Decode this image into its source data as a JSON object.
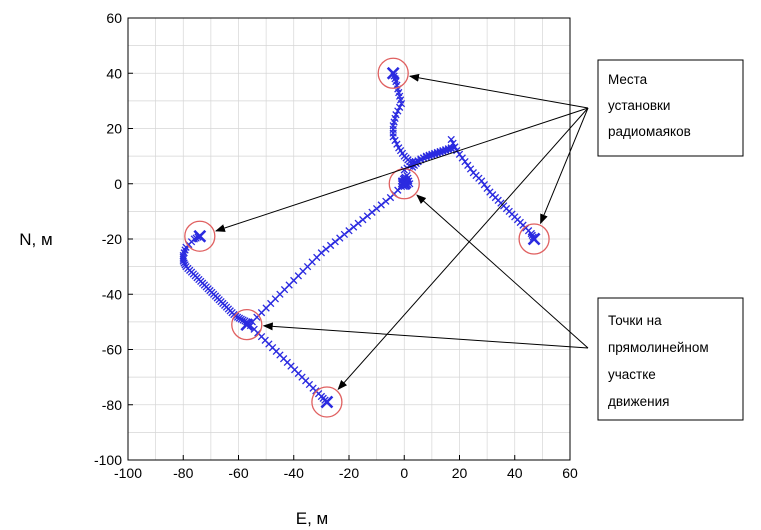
{
  "chart_data": {
    "type": "scatter",
    "xlabel": "E, м",
    "ylabel": "N, м",
    "xlim": [
      -100,
      60
    ],
    "ylim": [
      -100,
      60
    ],
    "x_ticks": [
      -100,
      -80,
      -60,
      -40,
      -20,
      0,
      20,
      40,
      60
    ],
    "y_ticks": [
      -100,
      -80,
      -60,
      -40,
      -20,
      0,
      20,
      40,
      60
    ],
    "x_tick_labels": [
      "-100",
      "-80",
      "-60",
      "-40",
      "-20",
      "0",
      "20",
      "40",
      "60"
    ],
    "y_tick_labels": [
      "-100",
      "-80",
      "-60",
      "-40",
      "-20",
      "0",
      "20",
      "40",
      "60"
    ],
    "grid": true,
    "marker": "x",
    "series_color": "#2a2ae0",
    "circle_color": "#e06060",
    "series": [
      {
        "x": [
          -4,
          -3,
          -2,
          -1,
          -3,
          -4,
          -4,
          -2,
          0,
          2,
          5
        ],
        "y": [
          40,
          37,
          33,
          29,
          25,
          21,
          17,
          13,
          10,
          8,
          8
        ]
      },
      {
        "x": [
          17,
          19,
          22,
          25,
          28,
          31,
          34,
          37,
          40,
          43,
          46,
          47
        ],
        "y": [
          16,
          12,
          8,
          4,
          1,
          -3,
          -6,
          -9,
          -12,
          -15,
          -18,
          -20
        ]
      },
      {
        "x": [
          17,
          14,
          11,
          8,
          5,
          3
        ],
        "y": [
          13,
          12,
          11,
          10,
          8,
          6
        ]
      },
      {
        "x": [
          0,
          1,
          0,
          -1,
          0,
          2,
          1,
          -1
        ],
        "y": [
          2,
          0,
          1,
          0,
          -1,
          0,
          3,
          1
        ]
      },
      {
        "x": [
          -1,
          -5,
          -10,
          -15,
          -20,
          -25,
          -30,
          -35,
          -40,
          -45,
          -50,
          -55
        ],
        "y": [
          -1,
          -5,
          -9,
          -13,
          -17,
          -21,
          -25,
          -30,
          -35,
          -40,
          -45,
          -50
        ]
      },
      {
        "x": [
          -57,
          -59,
          -61,
          -63,
          -65,
          -67,
          -69,
          -71,
          -73,
          -75,
          -77,
          -79,
          -80,
          -80,
          -79,
          -76,
          -74
        ],
        "y": [
          -50,
          -49,
          -48,
          -46,
          -44,
          -42,
          -40,
          -38,
          -36,
          -34,
          -32,
          -30,
          -28,
          -26,
          -23,
          -20,
          -19
        ]
      },
      {
        "x": [
          -57,
          -53,
          -49,
          -45,
          -41,
          -37,
          -33,
          -30,
          -28
        ],
        "y": [
          -50,
          -54,
          -58,
          -62,
          -66,
          -70,
          -74,
          -77,
          -79
        ]
      },
      {
        "x": [
          0,
          3,
          6,
          9,
          12,
          15,
          18
        ],
        "y": [
          5,
          7,
          9,
          10,
          11,
          12,
          13
        ]
      }
    ],
    "highlight_points": [
      {
        "x": -4,
        "y": 40
      },
      {
        "x": 47,
        "y": -20
      },
      {
        "x": -74,
        "y": -19
      },
      {
        "x": -28,
        "y": -79
      },
      {
        "x": 0,
        "y": 0
      },
      {
        "x": -57,
        "y": -51
      }
    ],
    "annotations": [
      {
        "lines": [
          "Места",
          "установки",
          "радиомаяков"
        ],
        "targets": [
          {
            "x": -4,
            "y": 40
          },
          {
            "x": 47,
            "y": -20
          },
          {
            "x": -74,
            "y": -19
          },
          {
            "x": -28,
            "y": -79
          }
        ]
      },
      {
        "lines": [
          "Точки на",
          "прямолинейном",
          "участке",
          "движения"
        ],
        "targets": [
          {
            "x": 0,
            "y": 0
          },
          {
            "x": -57,
            "y": -51
          }
        ]
      }
    ]
  }
}
